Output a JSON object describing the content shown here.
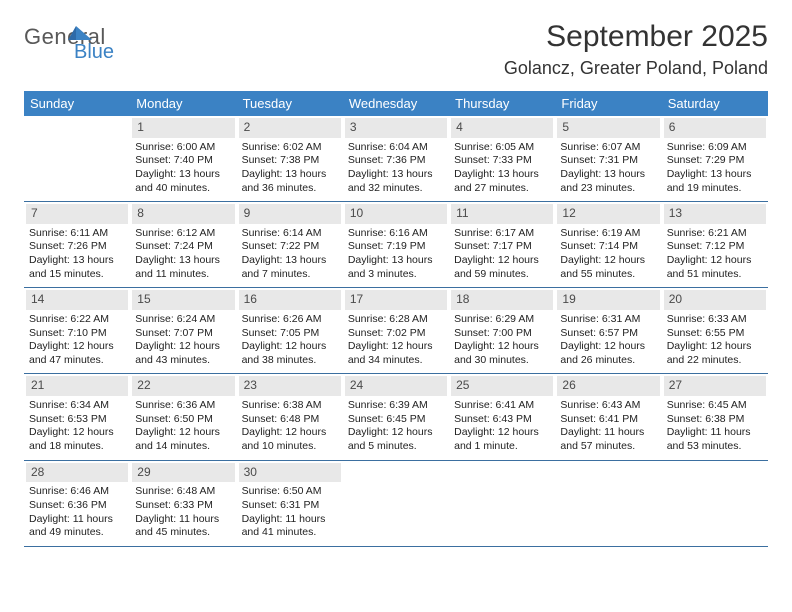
{
  "logo": {
    "word1": "General",
    "word2": "Blue"
  },
  "title": "September 2025",
  "subtitle": "Golancz, Greater Poland, Poland",
  "colors": {
    "header_bg": "#3b82c4",
    "header_text": "#ffffff",
    "daynum_bg": "#e8e8e8",
    "daynum_text": "#4a4a4a",
    "row_divider": "#3b6fa0",
    "body_text": "#222222",
    "title_text": "#333333",
    "logo_general": "#585858",
    "logo_blue": "#3b82c4",
    "page_bg": "#ffffff"
  },
  "typography": {
    "title_fontsize": 30,
    "subtitle_fontsize": 18,
    "weekday_fontsize": 13,
    "daynum_fontsize": 12,
    "cell_fontsize": 10.5
  },
  "weekdays": [
    "Sunday",
    "Monday",
    "Tuesday",
    "Wednesday",
    "Thursday",
    "Friday",
    "Saturday"
  ],
  "weeks": [
    [
      {
        "n": "",
        "sr": "",
        "ss": "",
        "dl": ""
      },
      {
        "n": "1",
        "sr": "Sunrise: 6:00 AM",
        "ss": "Sunset: 7:40 PM",
        "dl": "Daylight: 13 hours and 40 minutes."
      },
      {
        "n": "2",
        "sr": "Sunrise: 6:02 AM",
        "ss": "Sunset: 7:38 PM",
        "dl": "Daylight: 13 hours and 36 minutes."
      },
      {
        "n": "3",
        "sr": "Sunrise: 6:04 AM",
        "ss": "Sunset: 7:36 PM",
        "dl": "Daylight: 13 hours and 32 minutes."
      },
      {
        "n": "4",
        "sr": "Sunrise: 6:05 AM",
        "ss": "Sunset: 7:33 PM",
        "dl": "Daylight: 13 hours and 27 minutes."
      },
      {
        "n": "5",
        "sr": "Sunrise: 6:07 AM",
        "ss": "Sunset: 7:31 PM",
        "dl": "Daylight: 13 hours and 23 minutes."
      },
      {
        "n": "6",
        "sr": "Sunrise: 6:09 AM",
        "ss": "Sunset: 7:29 PM",
        "dl": "Daylight: 13 hours and 19 minutes."
      }
    ],
    [
      {
        "n": "7",
        "sr": "Sunrise: 6:11 AM",
        "ss": "Sunset: 7:26 PM",
        "dl": "Daylight: 13 hours and 15 minutes."
      },
      {
        "n": "8",
        "sr": "Sunrise: 6:12 AM",
        "ss": "Sunset: 7:24 PM",
        "dl": "Daylight: 13 hours and 11 minutes."
      },
      {
        "n": "9",
        "sr": "Sunrise: 6:14 AM",
        "ss": "Sunset: 7:22 PM",
        "dl": "Daylight: 13 hours and 7 minutes."
      },
      {
        "n": "10",
        "sr": "Sunrise: 6:16 AM",
        "ss": "Sunset: 7:19 PM",
        "dl": "Daylight: 13 hours and 3 minutes."
      },
      {
        "n": "11",
        "sr": "Sunrise: 6:17 AM",
        "ss": "Sunset: 7:17 PM",
        "dl": "Daylight: 12 hours and 59 minutes."
      },
      {
        "n": "12",
        "sr": "Sunrise: 6:19 AM",
        "ss": "Sunset: 7:14 PM",
        "dl": "Daylight: 12 hours and 55 minutes."
      },
      {
        "n": "13",
        "sr": "Sunrise: 6:21 AM",
        "ss": "Sunset: 7:12 PM",
        "dl": "Daylight: 12 hours and 51 minutes."
      }
    ],
    [
      {
        "n": "14",
        "sr": "Sunrise: 6:22 AM",
        "ss": "Sunset: 7:10 PM",
        "dl": "Daylight: 12 hours and 47 minutes."
      },
      {
        "n": "15",
        "sr": "Sunrise: 6:24 AM",
        "ss": "Sunset: 7:07 PM",
        "dl": "Daylight: 12 hours and 43 minutes."
      },
      {
        "n": "16",
        "sr": "Sunrise: 6:26 AM",
        "ss": "Sunset: 7:05 PM",
        "dl": "Daylight: 12 hours and 38 minutes."
      },
      {
        "n": "17",
        "sr": "Sunrise: 6:28 AM",
        "ss": "Sunset: 7:02 PM",
        "dl": "Daylight: 12 hours and 34 minutes."
      },
      {
        "n": "18",
        "sr": "Sunrise: 6:29 AM",
        "ss": "Sunset: 7:00 PM",
        "dl": "Daylight: 12 hours and 30 minutes."
      },
      {
        "n": "19",
        "sr": "Sunrise: 6:31 AM",
        "ss": "Sunset: 6:57 PM",
        "dl": "Daylight: 12 hours and 26 minutes."
      },
      {
        "n": "20",
        "sr": "Sunrise: 6:33 AM",
        "ss": "Sunset: 6:55 PM",
        "dl": "Daylight: 12 hours and 22 minutes."
      }
    ],
    [
      {
        "n": "21",
        "sr": "Sunrise: 6:34 AM",
        "ss": "Sunset: 6:53 PM",
        "dl": "Daylight: 12 hours and 18 minutes."
      },
      {
        "n": "22",
        "sr": "Sunrise: 6:36 AM",
        "ss": "Sunset: 6:50 PM",
        "dl": "Daylight: 12 hours and 14 minutes."
      },
      {
        "n": "23",
        "sr": "Sunrise: 6:38 AM",
        "ss": "Sunset: 6:48 PM",
        "dl": "Daylight: 12 hours and 10 minutes."
      },
      {
        "n": "24",
        "sr": "Sunrise: 6:39 AM",
        "ss": "Sunset: 6:45 PM",
        "dl": "Daylight: 12 hours and 5 minutes."
      },
      {
        "n": "25",
        "sr": "Sunrise: 6:41 AM",
        "ss": "Sunset: 6:43 PM",
        "dl": "Daylight: 12 hours and 1 minute."
      },
      {
        "n": "26",
        "sr": "Sunrise: 6:43 AM",
        "ss": "Sunset: 6:41 PM",
        "dl": "Daylight: 11 hours and 57 minutes."
      },
      {
        "n": "27",
        "sr": "Sunrise: 6:45 AM",
        "ss": "Sunset: 6:38 PM",
        "dl": "Daylight: 11 hours and 53 minutes."
      }
    ],
    [
      {
        "n": "28",
        "sr": "Sunrise: 6:46 AM",
        "ss": "Sunset: 6:36 PM",
        "dl": "Daylight: 11 hours and 49 minutes."
      },
      {
        "n": "29",
        "sr": "Sunrise: 6:48 AM",
        "ss": "Sunset: 6:33 PM",
        "dl": "Daylight: 11 hours and 45 minutes."
      },
      {
        "n": "30",
        "sr": "Sunrise: 6:50 AM",
        "ss": "Sunset: 6:31 PM",
        "dl": "Daylight: 11 hours and 41 minutes."
      },
      {
        "n": "",
        "sr": "",
        "ss": "",
        "dl": ""
      },
      {
        "n": "",
        "sr": "",
        "ss": "",
        "dl": ""
      },
      {
        "n": "",
        "sr": "",
        "ss": "",
        "dl": ""
      },
      {
        "n": "",
        "sr": "",
        "ss": "",
        "dl": ""
      }
    ]
  ]
}
